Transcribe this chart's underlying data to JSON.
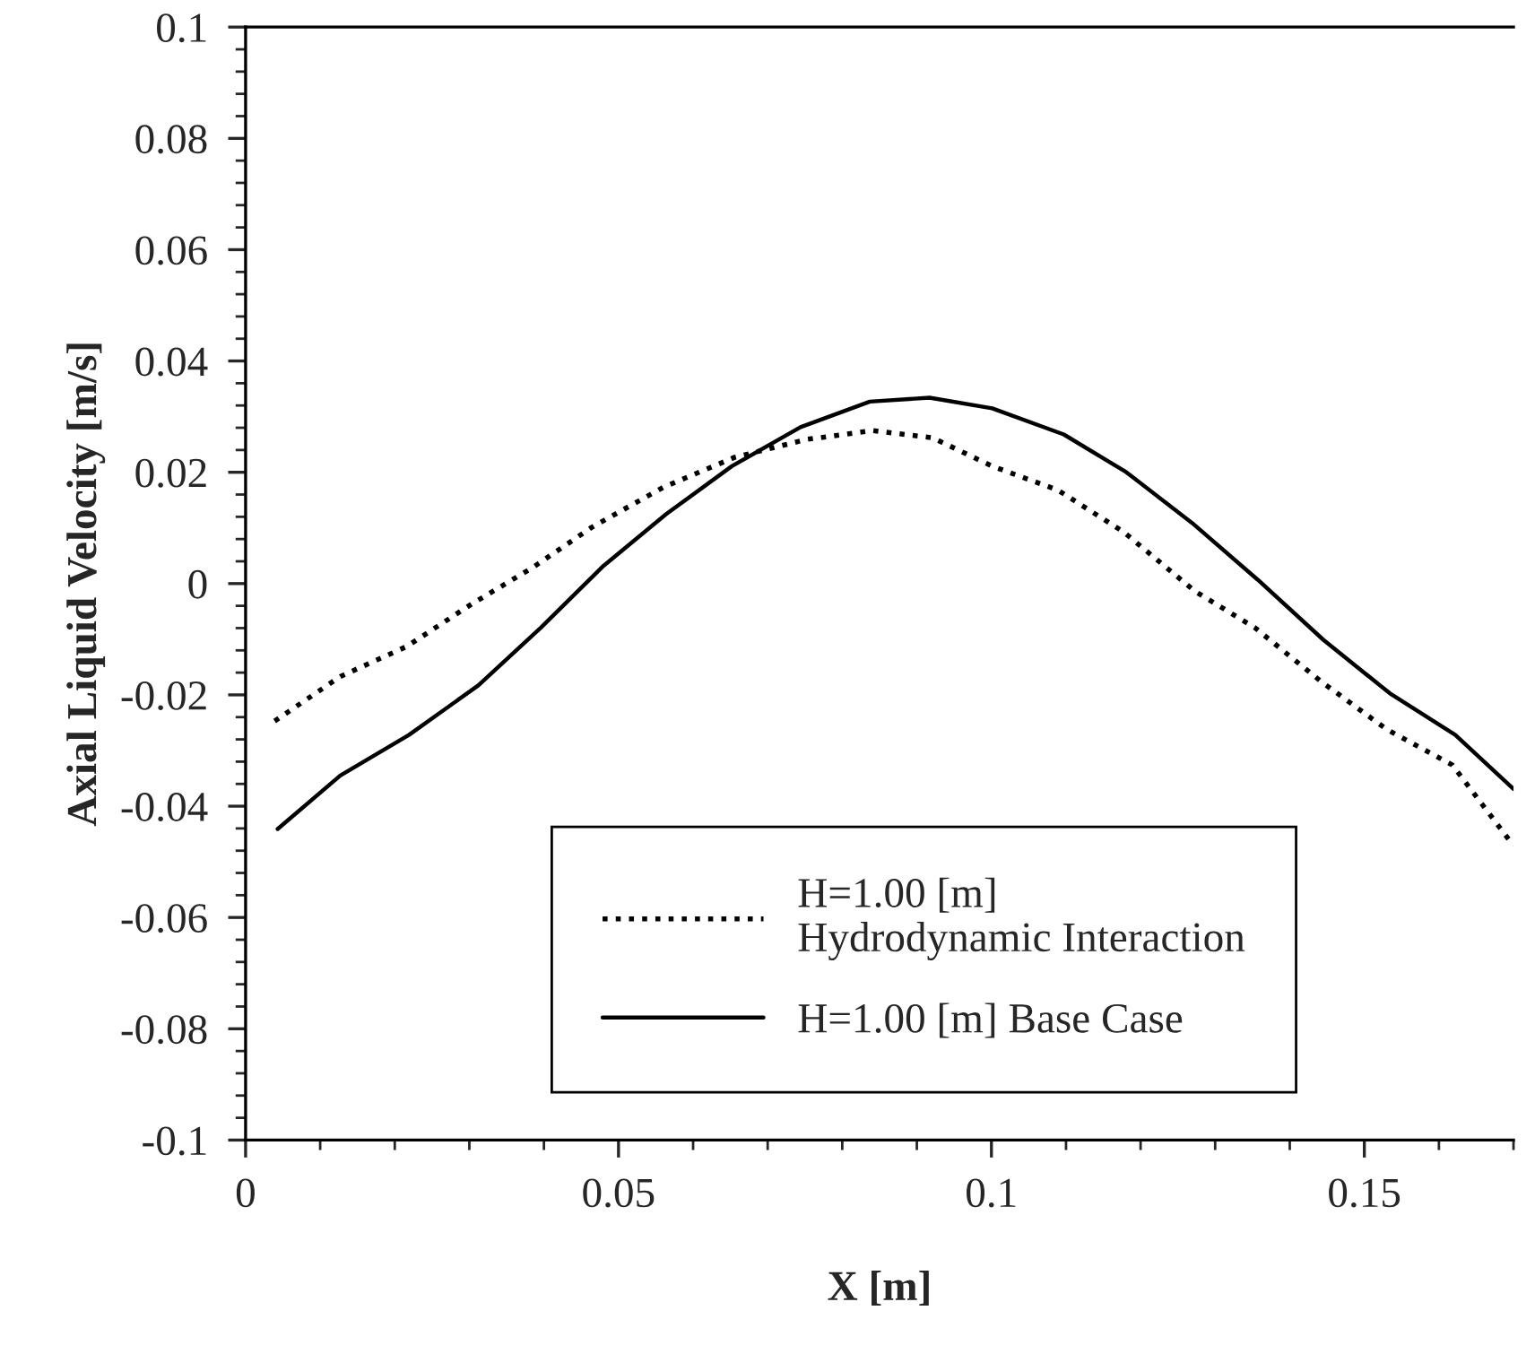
{
  "chart_data": {
    "type": "line",
    "xlabel": "X [m]",
    "ylabel": "Axial Liquid Velocity [m/s]",
    "xlim": [
      0,
      0.17
    ],
    "xticks": [
      0,
      0.05,
      0.1,
      0.15
    ],
    "ylim": [
      -0.1,
      0.1
    ],
    "yticks": [
      -0.1,
      -0.08,
      -0.06,
      -0.04,
      -0.02,
      0,
      0.02,
      0.04,
      0.06,
      0.08,
      0.1
    ],
    "grid": false,
    "legend": "bottom",
    "marker": "none",
    "series": [
      {
        "name": "H=1.00 [m]\nHydrodynamic Interaction",
        "color": "#000000",
        "line_style": "dotted",
        "x": [
          0.0039,
          0.0127,
          0.0216,
          0.0304,
          0.0384,
          0.0464,
          0.056,
          0.0656,
          0.0752,
          0.0841,
          0.0921,
          0.1001,
          0.1089,
          0.1177,
          0.1273,
          0.1353,
          0.1442,
          0.153,
          0.1618,
          0.17
        ],
        "values": [
          -0.0247,
          -0.0167,
          -0.0113,
          -0.0036,
          0.0028,
          0.0101,
          0.0173,
          0.0227,
          0.0259,
          0.0275,
          0.0262,
          0.0211,
          0.0168,
          0.0093,
          -0.0014,
          -0.0079,
          -0.0176,
          -0.0262,
          -0.0326,
          -0.0471
        ]
      },
      {
        "name": "H=1.00 [m] Base Case",
        "color": "#000000",
        "line_style": "solid",
        "x": [
          0.0043,
          0.0127,
          0.0219,
          0.0312,
          0.0396,
          0.048,
          0.0564,
          0.0652,
          0.0744,
          0.0837,
          0.0917,
          0.1001,
          0.1097,
          0.1181,
          0.1269,
          0.1357,
          0.1445,
          0.1534,
          0.1622,
          0.17
        ],
        "values": [
          -0.0441,
          -0.0345,
          -0.0272,
          -0.0183,
          -0.0079,
          0.0032,
          0.0125,
          0.0211,
          0.0281,
          0.0327,
          0.0334,
          0.0315,
          0.0268,
          0.02,
          0.0109,
          0.0007,
          -0.0101,
          -0.0197,
          -0.0272,
          -0.0369
        ]
      }
    ]
  }
}
